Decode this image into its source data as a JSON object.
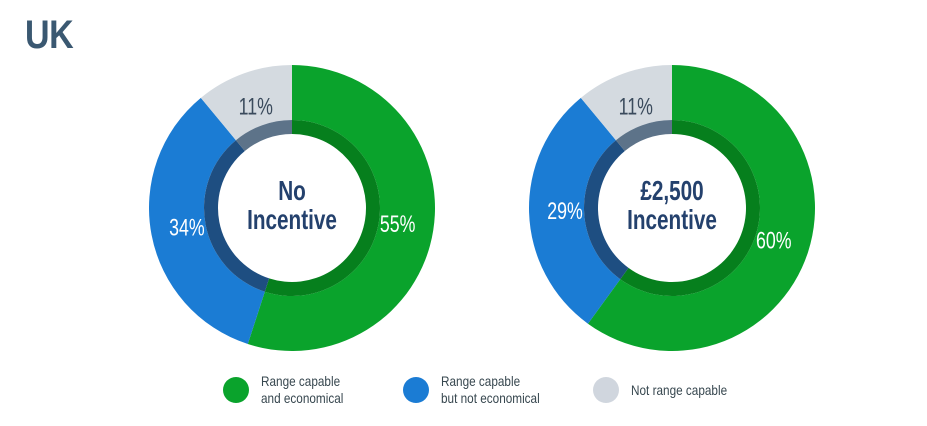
{
  "title": "UK",
  "chart_data": [
    {
      "type": "pie",
      "subtype": "donut",
      "name": "no-incentive-donut",
      "center_label_lines": [
        "No",
        "Incentive"
      ],
      "start_angle_deg": 0,
      "direction": "clockwise",
      "categories": [
        "Range capable and economical",
        "Range capable but not economical",
        "Not range capable"
      ],
      "values": [
        55,
        34,
        11
      ],
      "percent_labels": [
        "55%",
        "34%",
        "11%"
      ],
      "slice_colors": [
        "#0AA32C",
        "#1B7CD4",
        "#D4DAE0"
      ],
      "inner_ring_colors": [
        "#067F1D",
        "#1E4E81",
        "#5D7389"
      ],
      "percent_label_colors": [
        "#FFFFFF",
        "#FFFFFF",
        "#3A4A5C"
      ]
    },
    {
      "type": "pie",
      "subtype": "donut",
      "name": "gbp-2500-incentive-donut",
      "center_label_lines": [
        "£2,500",
        "Incentive"
      ],
      "start_angle_deg": 0,
      "direction": "clockwise",
      "categories": [
        "Range capable and economical",
        "Range capable but not economical",
        "Not range capable"
      ],
      "values": [
        60,
        29,
        11
      ],
      "percent_labels": [
        "60%",
        "29%",
        "11%"
      ],
      "slice_colors": [
        "#0AA32C",
        "#1B7CD4",
        "#D4DAE0"
      ],
      "inner_ring_colors": [
        "#067F1D",
        "#1E4E81",
        "#5D7389"
      ],
      "percent_label_colors": [
        "#FFFFFF",
        "#FFFFFF",
        "#3A4A5C"
      ]
    }
  ],
  "legend": {
    "items": [
      {
        "color": "#0AA32C",
        "lines": [
          "Range capable",
          "and economical"
        ]
      },
      {
        "color": "#1B7CD4",
        "lines": [
          "Range capable",
          "but not economical"
        ]
      },
      {
        "color": "#D0D6DE",
        "lines": [
          "Not range capable"
        ]
      }
    ]
  },
  "style_colors": {
    "title_color": "#3A5871",
    "center_label_color": "#24416D",
    "legend_text_color": "#37474F",
    "background": "#FFFFFF"
  }
}
